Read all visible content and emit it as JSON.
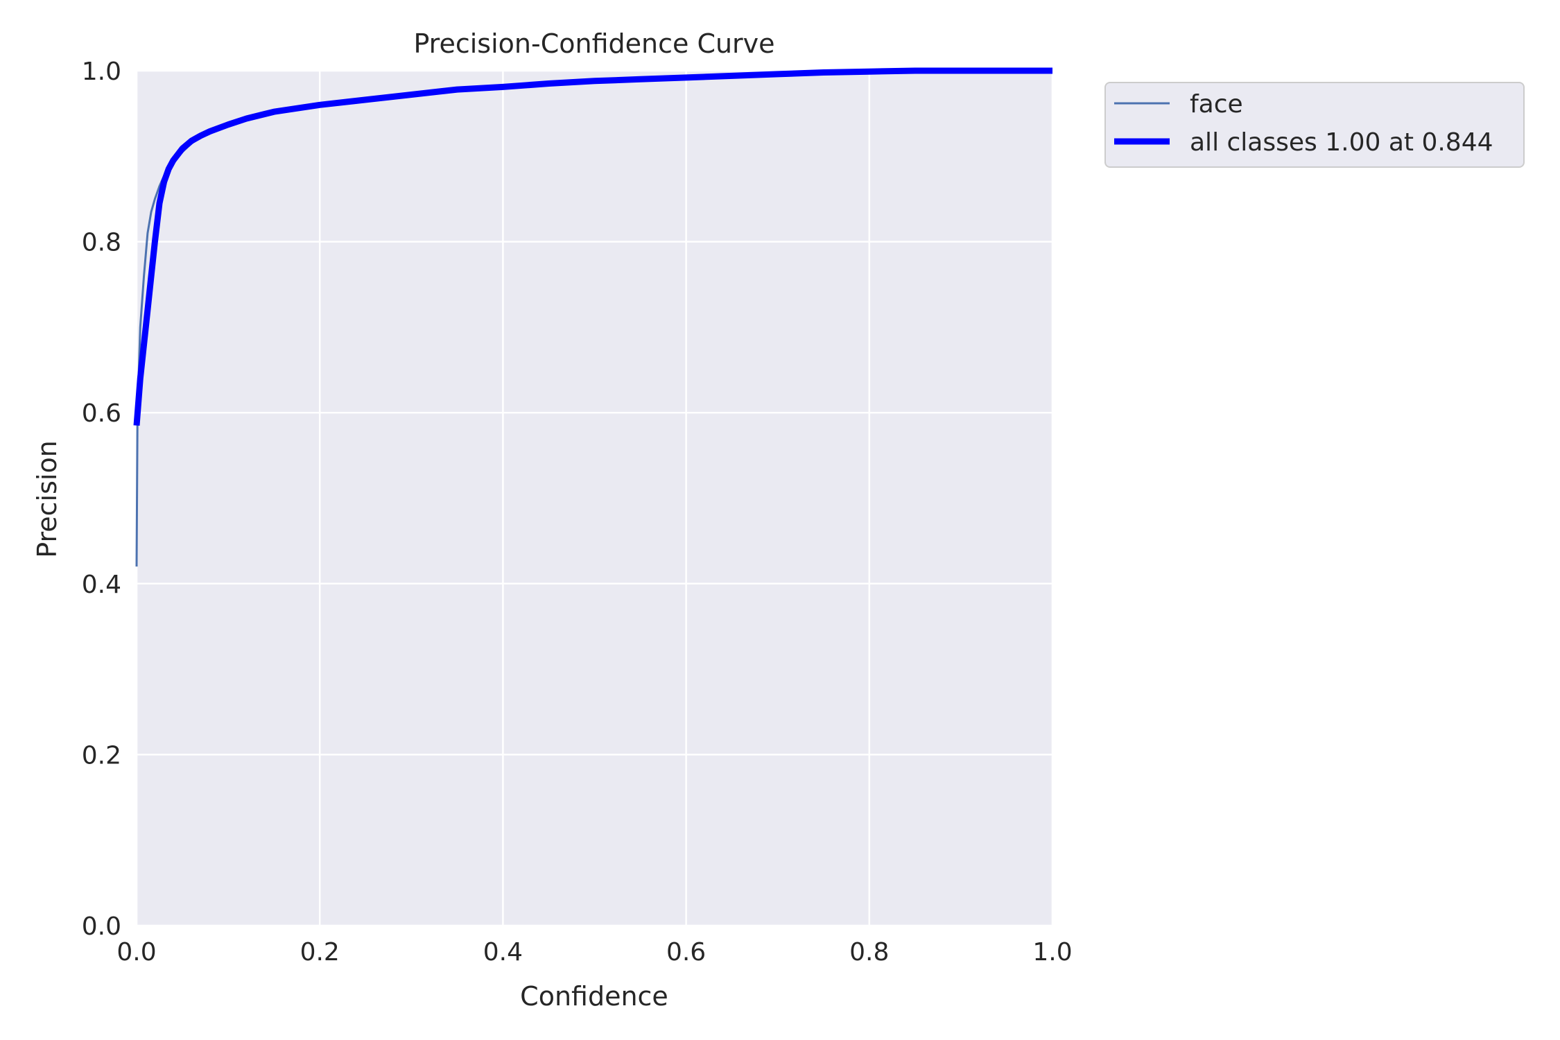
{
  "chart_data": {
    "type": "line",
    "title": "Precision-Confidence Curve",
    "xlabel": "Confidence",
    "ylabel": "Precision",
    "xlim": [
      0.0,
      1.0
    ],
    "ylim": [
      0.0,
      1.0
    ],
    "xticks": [
      0.0,
      0.2,
      0.4,
      0.6,
      0.8,
      1.0
    ],
    "yticks": [
      0.0,
      0.2,
      0.4,
      0.6,
      0.8,
      1.0
    ],
    "xtick_labels": [
      "0.0",
      "0.2",
      "0.4",
      "0.6",
      "0.8",
      "1.0"
    ],
    "ytick_labels": [
      "0.0",
      "0.2",
      "0.4",
      "0.6",
      "0.8",
      "1.0"
    ],
    "grid": true,
    "legend_position": "outside-top-right",
    "background_color": "#eaeaf2",
    "series": [
      {
        "name": "face",
        "color": "#4c72b0",
        "line_style": "thin",
        "x": [
          0.0,
          0.001,
          0.004,
          0.008,
          0.012,
          0.016,
          0.02,
          0.025,
          0.03,
          0.035,
          0.04,
          0.05,
          0.06,
          0.07,
          0.08,
          0.1,
          0.12,
          0.15,
          0.2,
          0.25,
          0.3,
          0.35,
          0.4,
          0.45,
          0.5,
          0.55,
          0.6,
          0.65,
          0.7,
          0.75,
          0.8,
          0.85,
          0.9,
          0.95,
          1.0
        ],
        "y": [
          0.42,
          0.6,
          0.7,
          0.76,
          0.81,
          0.835,
          0.85,
          0.865,
          0.877,
          0.886,
          0.893,
          0.905,
          0.915,
          0.922,
          0.928,
          0.937,
          0.944,
          0.952,
          0.96,
          0.966,
          0.972,
          0.978,
          0.981,
          0.985,
          0.988,
          0.99,
          0.992,
          0.994,
          0.996,
          0.998,
          0.999,
          1.0,
          1.0,
          1.0,
          1.0
        ]
      },
      {
        "name": "all classes 1.00 at 0.844",
        "color": "#0000ff",
        "line_style": "thick",
        "x": [
          0.0,
          0.004,
          0.008,
          0.012,
          0.016,
          0.02,
          0.025,
          0.03,
          0.035,
          0.04,
          0.05,
          0.06,
          0.07,
          0.08,
          0.1,
          0.12,
          0.15,
          0.2,
          0.25,
          0.3,
          0.35,
          0.4,
          0.45,
          0.5,
          0.55,
          0.6,
          0.65,
          0.7,
          0.75,
          0.8,
          0.85,
          0.9,
          0.95,
          1.0
        ],
        "y": [
          0.585,
          0.64,
          0.68,
          0.72,
          0.76,
          0.8,
          0.845,
          0.87,
          0.885,
          0.895,
          0.909,
          0.918,
          0.924,
          0.929,
          0.937,
          0.944,
          0.952,
          0.96,
          0.966,
          0.972,
          0.978,
          0.981,
          0.985,
          0.988,
          0.99,
          0.992,
          0.994,
          0.996,
          0.998,
          0.999,
          1.0,
          1.0,
          1.0,
          1.0
        ]
      }
    ]
  }
}
